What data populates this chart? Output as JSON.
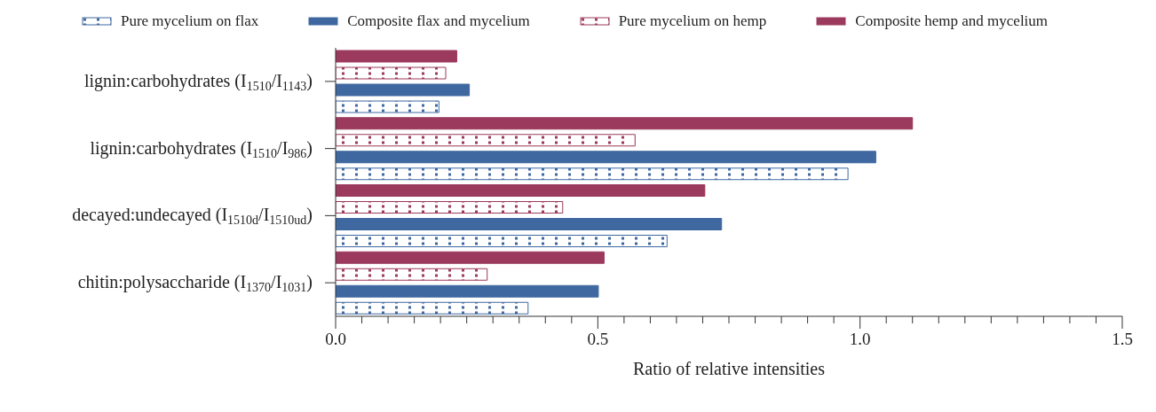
{
  "chart_data": {
    "type": "bar",
    "orientation": "horizontal",
    "xlabel": "Ratio of relative intensities",
    "categories": [
      "lignin:carbohydrates (I$_{1510}$/I$_{1143}$)",
      "lignin:carbohydrates (I$_{1510}$/I$_{986}$)",
      "decayed:undecayed (I$_{1510d}$/I$_{1510ud}$)",
      "chitin:polysaccharide (I$_{1370}$/I$_{1031}$)"
    ],
    "series": [
      {
        "name": "Pure mycelium on flax",
        "color": "#3f68a0",
        "line_style": "dotted",
        "values": [
          0.197,
          0.977,
          0.632,
          0.367
        ]
      },
      {
        "name": "Composite flax and mycelium",
        "color": "#3f68a0",
        "values": [
          0.255,
          1.03,
          0.736,
          0.501
        ]
      },
      {
        "name": "Pure mycelium on hemp",
        "color": "#9b3a5c",
        "line_style": "dotted",
        "values": [
          0.21,
          0.571,
          0.433,
          0.289
        ]
      },
      {
        "name": "Composite hemp and mycelium",
        "color": "#9b3a5c",
        "values": [
          0.231,
          1.1,
          0.704,
          0.512
        ]
      }
    ],
    "xlim": [
      0,
      1.5
    ],
    "xticks": [
      {
        "value": 0,
        "label": "0.0"
      },
      {
        "value": 0.05,
        "label": null
      },
      {
        "value": 0.1,
        "label": null
      },
      {
        "value": 0.15,
        "label": null
      },
      {
        "value": 0.2,
        "label": null
      },
      {
        "value": 0.25,
        "label": null
      },
      {
        "value": 0.3,
        "label": null
      },
      {
        "value": 0.35,
        "label": null
      },
      {
        "value": 0.4,
        "label": null
      },
      {
        "value": 0.45,
        "label": null
      },
      {
        "value": 0.5,
        "label": "0.5"
      },
      {
        "value": 0.55,
        "label": null
      },
      {
        "value": 0.6,
        "label": null
      },
      {
        "value": 0.65,
        "label": null
      },
      {
        "value": 0.7,
        "label": null
      },
      {
        "value": 0.75,
        "label": null
      },
      {
        "value": 0.8,
        "label": null
      },
      {
        "value": 0.85,
        "label": null
      },
      {
        "value": 0.9,
        "label": null
      },
      {
        "value": 0.95,
        "label": null
      },
      {
        "value": 1,
        "label": "1.0"
      },
      {
        "value": 1.05,
        "label": null
      },
      {
        "value": 1.1,
        "label": null
      },
      {
        "value": 1.15,
        "label": null
      },
      {
        "value": 1.2,
        "label": null
      },
      {
        "value": 1.25,
        "label": null
      },
      {
        "value": 1.3,
        "label": null
      },
      {
        "value": 1.35,
        "label": null
      },
      {
        "value": 1.4,
        "label": null
      },
      {
        "value": 1.45,
        "label": null
      },
      {
        "value": 1.5,
        "label": "1.5"
      }
    ],
    "legend": "top"
  }
}
